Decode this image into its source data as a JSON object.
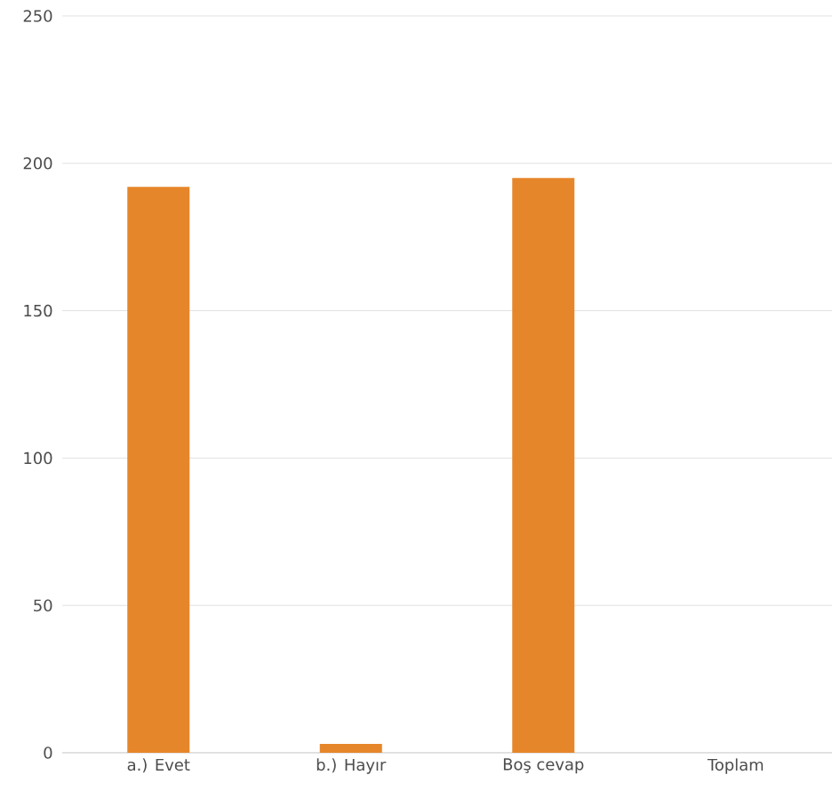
{
  "chart_data": {
    "type": "bar",
    "categories": [
      "a.) Evet",
      "b.) Hayır",
      "Boş cevap",
      "Toplam"
    ],
    "values": [
      192,
      3,
      195,
      0
    ],
    "color": "#e6862a",
    "ylim": [
      0,
      250
    ],
    "yticks": [
      0,
      50,
      100,
      150,
      200,
      250
    ],
    "grid": "y"
  }
}
